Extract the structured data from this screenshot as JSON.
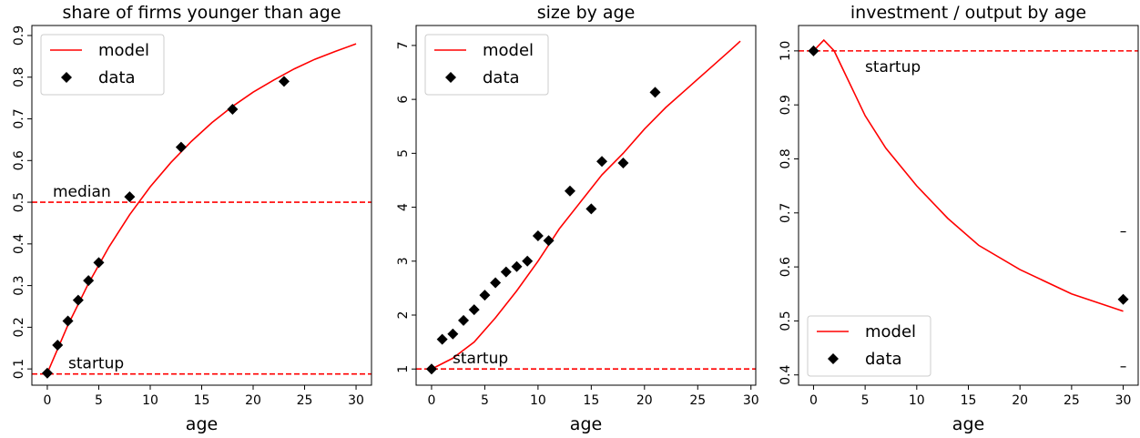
{
  "chart_data": [
    {
      "type": "line",
      "title": "share of firms younger than age",
      "xlabel": "age",
      "xlim": [
        -1.5,
        31.5
      ],
      "ylim": [
        0.061,
        0.924
      ],
      "xticks": [
        0,
        5,
        10,
        15,
        20,
        25,
        30
      ],
      "yticks": [
        0.1,
        0.2,
        0.3,
        0.4,
        0.5,
        0.6,
        0.7,
        0.8,
        0.9
      ],
      "legend": "upper left",
      "hlines": [
        {
          "y": 0.5,
          "label": "median",
          "color": "#ff0000"
        },
        {
          "y": 0.088,
          "label": "startup",
          "color": "#ff0000"
        }
      ],
      "series": [
        {
          "name": "model",
          "kind": "line",
          "color": "#ff0000",
          "x": [
            0,
            2,
            4,
            6,
            8,
            10,
            12,
            14,
            16,
            18,
            20,
            22,
            24,
            26,
            28,
            30
          ],
          "values": [
            0.09,
            0.205,
            0.305,
            0.393,
            0.47,
            0.537,
            0.595,
            0.646,
            0.691,
            0.73,
            0.764,
            0.793,
            0.82,
            0.843,
            0.862,
            0.88
          ]
        },
        {
          "name": "data",
          "kind": "marker",
          "color": "#000000",
          "x": [
            0,
            1,
            2,
            3,
            4,
            5,
            8,
            13,
            18,
            23
          ],
          "values": [
            0.09,
            0.157,
            0.215,
            0.265,
            0.312,
            0.355,
            0.513,
            0.632,
            0.723,
            0.79
          ]
        }
      ]
    },
    {
      "type": "line",
      "title": "size by age",
      "xlabel": "age",
      "xlim": [
        -1.45,
        30.45
      ],
      "ylim": [
        0.7,
        7.37
      ],
      "xticks": [
        0,
        5,
        10,
        15,
        20,
        25,
        30
      ],
      "yticks": [
        1,
        2,
        3,
        4,
        5,
        6,
        7
      ],
      "legend": "upper left",
      "hlines": [
        {
          "y": 1,
          "label": "startup",
          "color": "#ff0000"
        }
      ],
      "series": [
        {
          "name": "model",
          "kind": "line",
          "color": "#ff0000",
          "x": [
            0,
            2,
            4,
            6,
            8,
            10,
            12,
            14,
            16,
            18,
            20,
            22,
            24,
            26,
            28,
            29
          ],
          "values": [
            1.0,
            1.2,
            1.5,
            1.95,
            2.45,
            3.0,
            3.6,
            4.1,
            4.6,
            5.0,
            5.45,
            5.85,
            6.2,
            6.55,
            6.9,
            7.08
          ]
        },
        {
          "name": "data",
          "kind": "marker",
          "color": "#000000",
          "x": [
            0,
            1,
            2,
            3,
            4,
            5,
            6,
            7,
            8,
            9,
            10,
            11,
            13,
            15,
            16,
            18,
            21
          ],
          "values": [
            1.0,
            1.55,
            1.65,
            1.9,
            2.1,
            2.37,
            2.6,
            2.8,
            2.9,
            3.0,
            3.47,
            3.38,
            4.3,
            3.97,
            4.85,
            4.82,
            6.13
          ]
        }
      ]
    },
    {
      "type": "line",
      "title": "investment / output by age",
      "xlabel": "age",
      "xlim": [
        -1.45,
        31.45
      ],
      "ylim": [
        0.381,
        1.047
      ],
      "xticks": [
        0,
        5,
        10,
        15,
        20,
        25,
        30
      ],
      "yticks": [
        0.4,
        0.5,
        0.6,
        0.7,
        0.8,
        0.9,
        {
          "value": 1,
          "label": "1.0"
        }
      ],
      "legend": "lower left",
      "hlines": [
        {
          "y": 1,
          "label": "startup",
          "color": "#ff0000"
        }
      ],
      "series": [
        {
          "name": "model",
          "kind": "line",
          "color": "#ff0000",
          "x": [
            0,
            1,
            2,
            3,
            4,
            5,
            7,
            10,
            13,
            16,
            20,
            25,
            30
          ],
          "values": [
            1.0,
            1.02,
            1.0,
            0.96,
            0.92,
            0.88,
            0.82,
            0.75,
            0.69,
            0.64,
            0.595,
            0.55,
            0.518
          ]
        },
        {
          "name": "data",
          "kind": "marker",
          "color": "#000000",
          "x": [
            0,
            30
          ],
          "values": [
            1.0,
            0.54
          ],
          "yerr": [
            0,
            0.125
          ]
        }
      ]
    }
  ]
}
